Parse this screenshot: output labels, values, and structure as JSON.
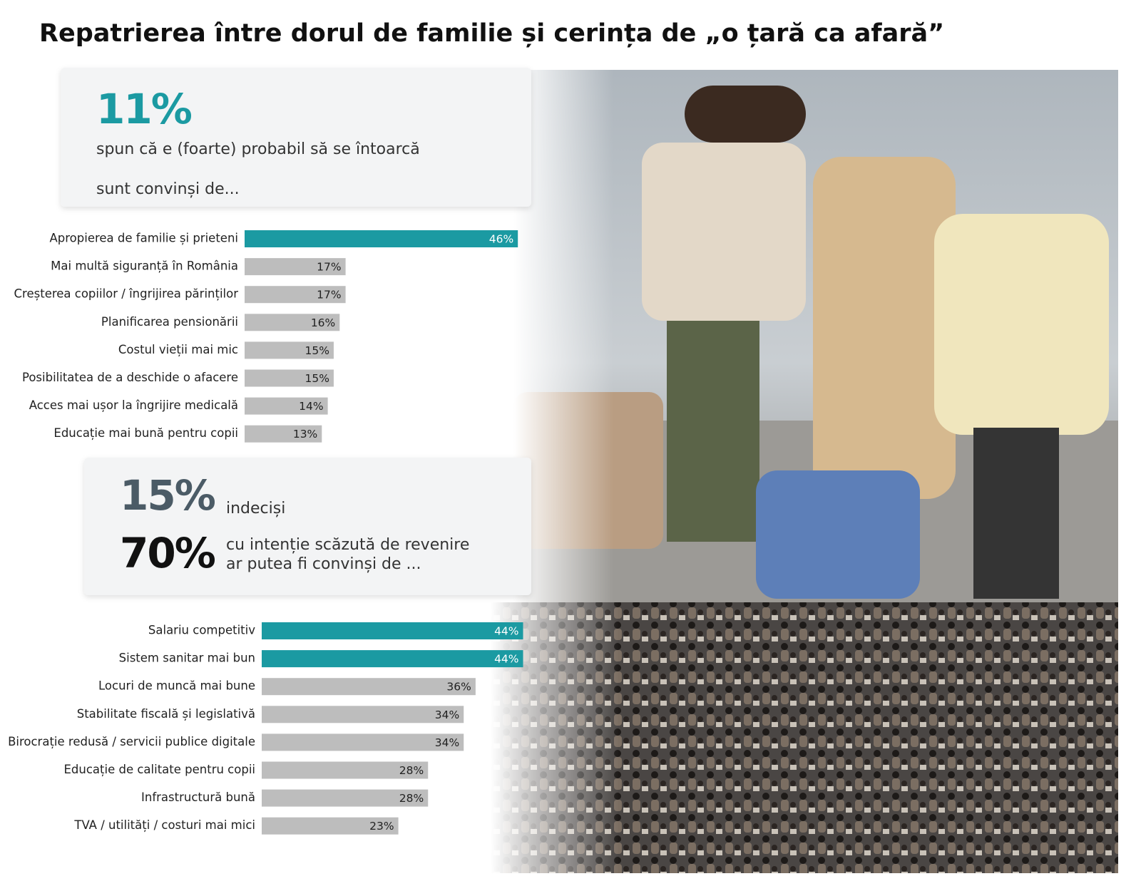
{
  "header": {
    "title": "Repatrierea între dorul de familie și cerința de „o țară ca afară”"
  },
  "likely_box": {
    "percent": "11%",
    "text": "spun că e (foarte) probabil să se întoarcă",
    "lead": "sunt convinși de..."
  },
  "undecided_box": {
    "undecided_percent": "15%",
    "undecided_text": "indeciși",
    "low_percent": "70%",
    "low_text": "cu intenție scăzută de revenire",
    "low_lead": "ar putea fi convinși de ..."
  },
  "chart_data": [
    {
      "type": "bar",
      "orientation": "horizontal",
      "categories": [
        "Apropierea de familie și prieteni",
        "Mai multă siguranță în România",
        "Creșterea copiilor / îngrijirea părinților",
        "Planificarea pensionării",
        "Costul vieții mai mic",
        "Posibilitatea de a deschide o afacere",
        "Acces mai ușor la îngrijire medicală",
        "Educație mai bună pentru copii"
      ],
      "values": [
        46,
        17,
        17,
        16,
        15,
        15,
        14,
        13
      ],
      "value_labels": [
        "46%",
        "17%",
        "17%",
        "16%",
        "15%",
        "15%",
        "14%",
        "13%"
      ],
      "colors": [
        "#1b9aa2",
        "#bdbdbd",
        "#bdbdbd",
        "#bdbdbd",
        "#bdbdbd",
        "#bdbdbd",
        "#bdbdbd",
        "#bdbdbd"
      ]
    },
    {
      "type": "bar",
      "orientation": "horizontal",
      "categories": [
        "Salariu competitiv",
        "Sistem sanitar mai bun",
        "Locuri de muncă mai bune",
        "Stabilitate fiscală și legislativă",
        "Birocrație redusă / servicii publice digitale",
        "Educație de calitate pentru copii",
        "Infrastructură bună",
        "TVA / utilități / costuri mai mici"
      ],
      "values": [
        44,
        44,
        36,
        34,
        34,
        28,
        28,
        23
      ],
      "value_labels": [
        "44%",
        "44%",
        "36%",
        "34%",
        "34%",
        "28%",
        "28%",
        "23%"
      ],
      "colors": [
        "#1b9aa2",
        "#1b9aa2",
        "#bdbdbd",
        "#bdbdbd",
        "#bdbdbd",
        "#bdbdbd",
        "#bdbdbd",
        "#bdbdbd"
      ]
    }
  ]
}
